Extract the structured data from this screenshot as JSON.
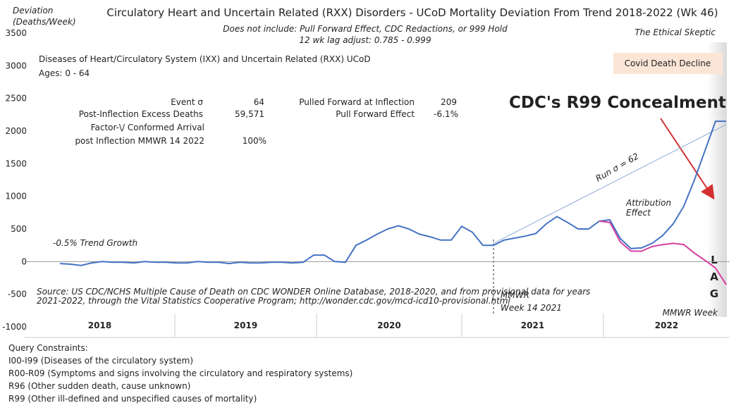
{
  "chart_data": {
    "type": "line",
    "title": "Circulatory Heart and Uncertain Related (RXX) Disorders - UCoD Mortality Deviation From Trend  2018-2022 (Wk 46)",
    "subtitle": [
      "Does not include: Pull Forward Effect,  CDC Redactions, or 999 Hold",
      "12 wk lag adjust: 0.785 - 0.999"
    ],
    "y_label": [
      "Deviation",
      "(Deaths/Week)"
    ],
    "brand": "The Ethical Skeptic",
    "series_title": "Diseases of Heart/Circulatory System (IXX) and Uncertain Related (RXX) UCoD",
    "ages": "Ages: 0 - 64",
    "stats": [
      {
        "label": "Event σ",
        "value": "64"
      },
      {
        "label": "Post-Inflection Excess Deaths",
        "value": "59,571"
      },
      {
        "label": "Factor-\\/ Conformed Arrival",
        "value": null
      },
      {
        "label": "post Inflection MMWR 14 2022",
        "value": "100%"
      },
      {
        "label": "Pulled Forward at Inflection",
        "value": "209"
      },
      {
        "label": "Pull Forward Effect",
        "value": "-6.1%"
      }
    ],
    "annotations": {
      "trend": "-0.5% Trend Growth",
      "concealment": "CDC's R99 Concealment",
      "covid": "Covid Death Decline",
      "attribution": [
        "Attribution",
        "Effect"
      ],
      "inflection": [
        "MMWR",
        "Week 14 2021"
      ],
      "lag": [
        "L",
        "A",
        "G"
      ],
      "x_label": "MMWR Week",
      "source": [
        "Source: US CDC/NCHS Multiple Cause of Death on CDC WONDER Online Database, 2018-2020, and from provisional data for years",
        "2021-2022, through the Vital Statistics Cooperative Program; http://wonder.cdc.gov/mcd-icd10-provisional.html"
      ]
    },
    "periods": [
      "2018",
      "2019",
      "2020",
      "2021",
      "2022"
    ],
    "ylim": [
      -1000,
      3500
    ],
    "yticks": [
      -1000,
      -500,
      0,
      500,
      1000,
      1500,
      2000,
      2500,
      3000,
      3500
    ],
    "series": [
      {
        "name": "UCoD deviation",
        "color": "#4472c4",
        "values": [
          -30,
          -40,
          -60,
          -20,
          0,
          -10,
          -10,
          -20,
          0,
          -10,
          -10,
          -20,
          -20,
          0,
          -10,
          -10,
          -30,
          -10,
          -20,
          -20,
          -10,
          -10,
          -20,
          -10,
          100,
          100,
          0,
          -10,
          250,
          330,
          420,
          500,
          550,
          500,
          420,
          380,
          330,
          330,
          540,
          450,
          250,
          250,
          330,
          360,
          390,
          430,
          580,
          690,
          600,
          500,
          500,
          620,
          640,
          350,
          200,
          210,
          280,
          400,
          580,
          850,
          1250,
          1700,
          2150,
          2150
        ]
      },
      {
        "name": "Attribution effect",
        "color": "#d63fa0",
        "values": [
          null,
          null,
          null,
          null,
          null,
          null,
          null,
          null,
          null,
          null,
          null,
          null,
          null,
          null,
          null,
          null,
          null,
          null,
          null,
          null,
          null,
          null,
          null,
          null,
          null,
          null,
          null,
          null,
          null,
          null,
          null,
          null,
          null,
          null,
          null,
          null,
          null,
          null,
          null,
          null,
          null,
          null,
          null,
          null,
          null,
          null,
          null,
          null,
          null,
          null,
          null,
          620,
          600,
          300,
          160,
          160,
          230,
          260,
          280,
          260,
          130,
          20,
          -100,
          -350
        ]
      },
      {
        "name": "Run σ = 62",
        "color": "#8ea9d8",
        "values": [
          null,
          null,
          null,
          null,
          null,
          null,
          null,
          null,
          null,
          null,
          null,
          null,
          null,
          null,
          null,
          null,
          null,
          null,
          null,
          null,
          null,
          null,
          null,
          null,
          null,
          null,
          null,
          null,
          null,
          null,
          null,
          null,
          null,
          null,
          null,
          null,
          null,
          null,
          null,
          null,
          null,
          280,
          363,
          445,
          528,
          611,
          694,
          776,
          859,
          942,
          1025,
          1107,
          1190,
          1273,
          1355,
          1438,
          1521,
          1604,
          1686,
          1769,
          1852,
          1935,
          2017,
          2100
        ]
      }
    ]
  },
  "footer": {
    "title": "Query Constraints:",
    "lines": [
      "I00-I99 (Diseases of the circulatory system)",
      "R00-R09 (Symptoms and signs involving the circulatory and respiratory systems)",
      "R96 (Other sudden death, cause unknown)",
      "R99 (Other ill-defined and unspecified causes of mortality)"
    ]
  }
}
